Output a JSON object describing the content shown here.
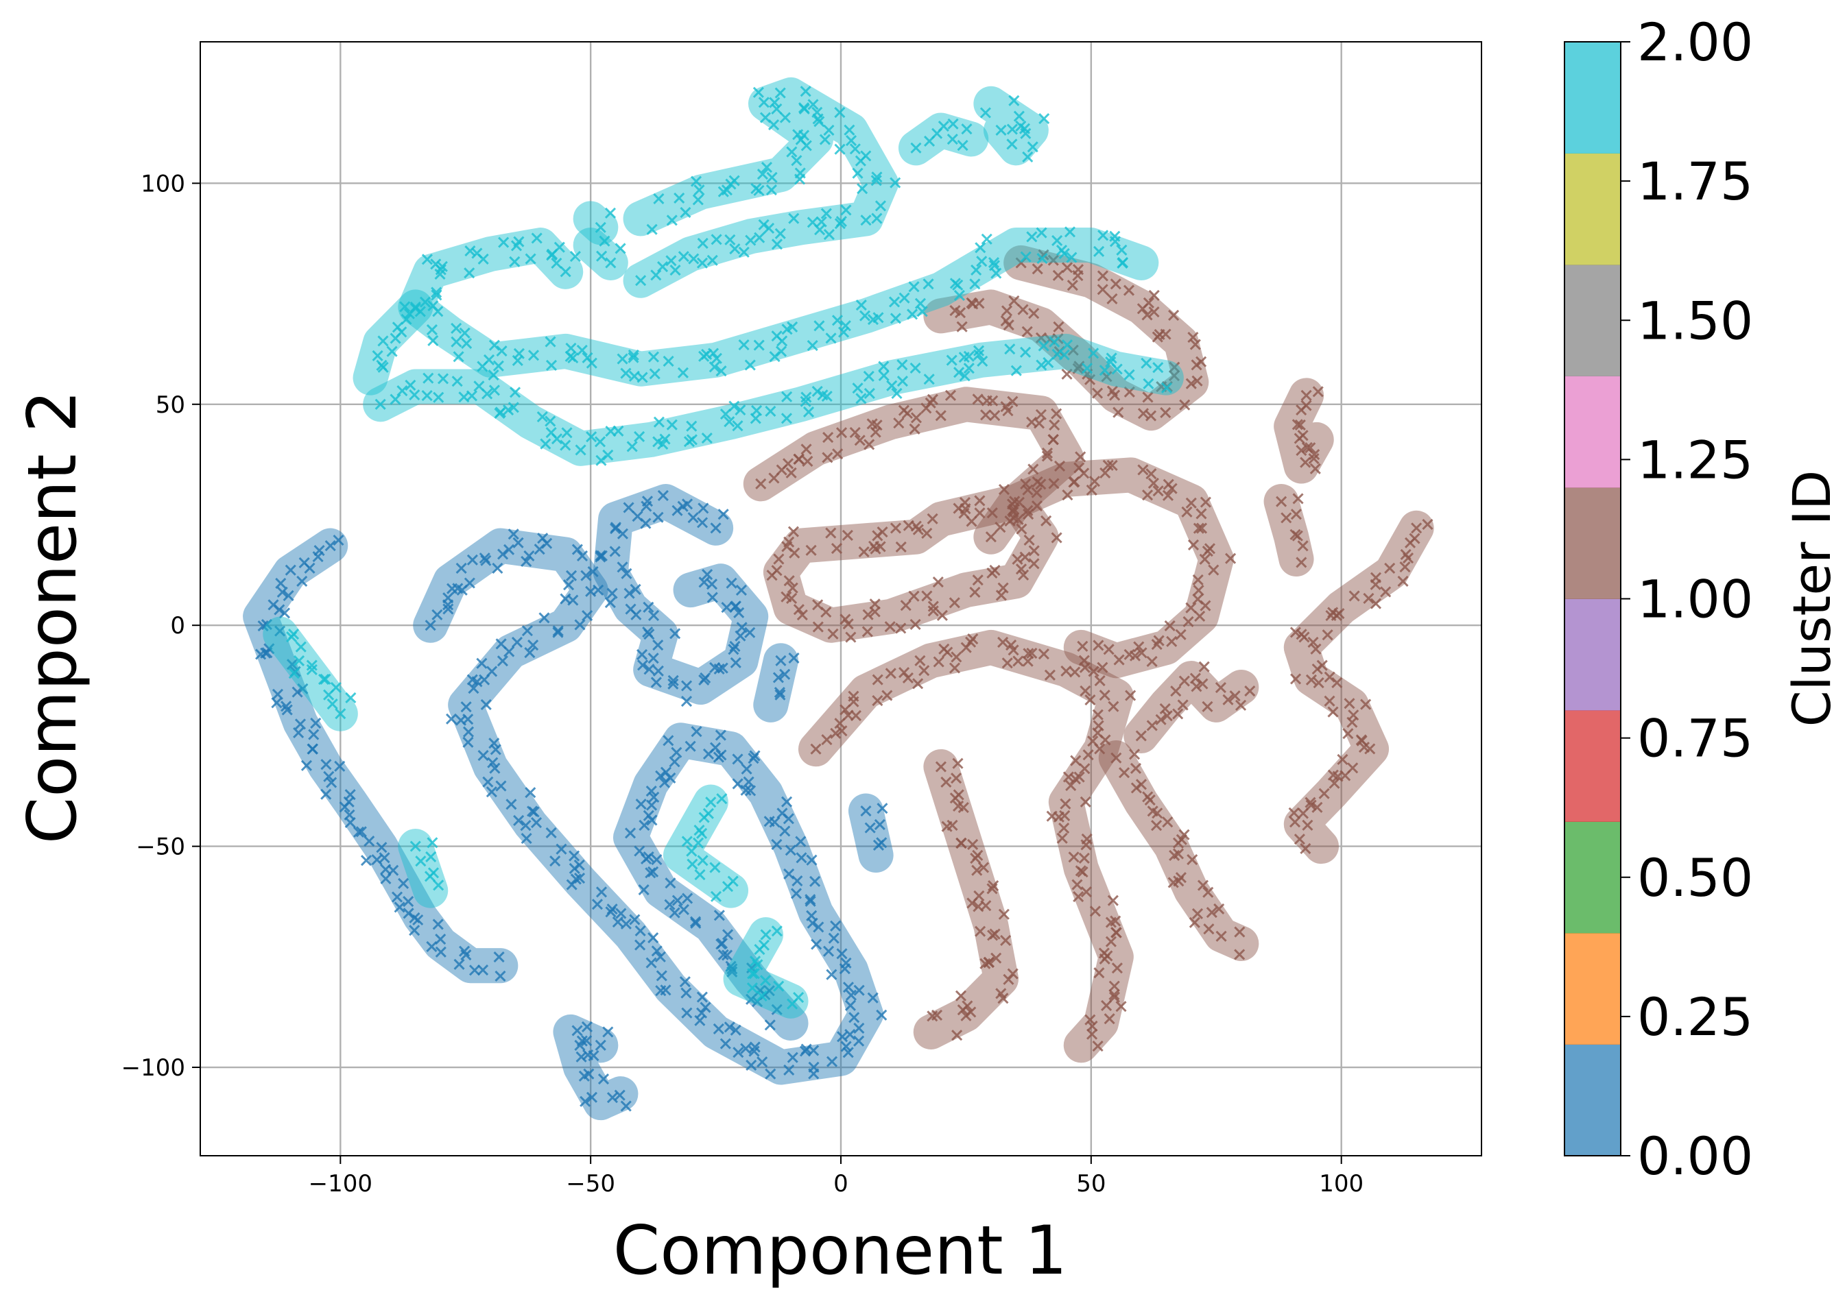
{
  "chart_data": {
    "type": "scatter",
    "title": "",
    "xlabel": "Component 1",
    "ylabel": "Component 2",
    "xlim": [
      -128,
      128
    ],
    "ylim": [
      -120,
      132
    ],
    "xticks": [
      -100,
      -50,
      0,
      50,
      100
    ],
    "xtick_labels": [
      "−100",
      "−50",
      "0",
      "50",
      "100"
    ],
    "yticks": [
      -100,
      -50,
      0,
      50,
      100
    ],
    "ytick_labels": [
      "−100",
      "−50",
      "0",
      "50",
      "100"
    ],
    "grid": true,
    "marker": "x",
    "colormap": "tab10",
    "colorbar": {
      "label": "Cluster ID",
      "range": [
        0,
        2
      ],
      "ticks": [
        0.0,
        0.25,
        0.5,
        0.75,
        1.0,
        1.25,
        1.5,
        1.75,
        2.0
      ],
      "tick_labels": [
        "0.00",
        "0.25",
        "0.50",
        "0.75",
        "1.00",
        "1.25",
        "1.50",
        "1.75",
        "2.00"
      ],
      "colors": [
        "#1f77b4",
        "#ff7f0e",
        "#2ca02c",
        "#d62728",
        "#9467bd",
        "#8c564b",
        "#e377c2",
        "#7f7f7f",
        "#bcbd22",
        "#17becf"
      ]
    },
    "series": [
      {
        "cluster": 0,
        "color": "#1f77b4",
        "paths": [
          [
            [
              -102,
              18
            ],
            [
              -110,
              12
            ],
            [
              -116,
              2
            ],
            [
              -112,
              -10
            ],
            [
              -108,
              -22
            ],
            [
              -103,
              -32
            ],
            [
              -98,
              -40
            ],
            [
              -92,
              -50
            ],
            [
              -88,
              -58
            ],
            [
              -84,
              -66
            ],
            [
              -80,
              -72
            ],
            [
              -74,
              -77
            ],
            [
              -68,
              -77
            ]
          ],
          [
            [
              -82,
              0
            ],
            [
              -78,
              10
            ],
            [
              -68,
              18
            ],
            [
              -55,
              16
            ],
            [
              -50,
              8
            ],
            [
              -55,
              0
            ],
            [
              -66,
              -6
            ],
            [
              -75,
              -18
            ],
            [
              -70,
              -32
            ],
            [
              -62,
              -45
            ],
            [
              -52,
              -58
            ],
            [
              -42,
              -70
            ],
            [
              -34,
              -82
            ],
            [
              -25,
              -92
            ],
            [
              -12,
              -100
            ],
            [
              0,
              -98
            ],
            [
              5,
              -88
            ],
            [
              2,
              -78
            ],
            [
              -5,
              -65
            ],
            [
              -10,
              -50
            ],
            [
              -15,
              -38
            ],
            [
              -22,
              -28
            ],
            [
              -32,
              -26
            ],
            [
              -38,
              -36
            ],
            [
              -42,
              -48
            ],
            [
              -36,
              -60
            ],
            [
              -26,
              -68
            ],
            [
              -18,
              -80
            ],
            [
              -10,
              -90
            ]
          ],
          [
            [
              -48,
              -95
            ],
            [
              -54,
              -92
            ],
            [
              -52,
              -100
            ],
            [
              -48,
              -108
            ],
            [
              -44,
              -106
            ]
          ],
          [
            [
              -25,
              22
            ],
            [
              -35,
              28
            ],
            [
              -45,
              24
            ],
            [
              -46,
              12
            ],
            [
              -42,
              4
            ],
            [
              -36,
              -2
            ],
            [
              -38,
              -10
            ],
            [
              -28,
              -14
            ],
            [
              -20,
              -8
            ],
            [
              -18,
              2
            ],
            [
              -24,
              10
            ],
            [
              -30,
              8
            ]
          ],
          [
            [
              5,
              -42
            ],
            [
              7,
              -52
            ]
          ],
          [
            [
              -12,
              -8
            ],
            [
              -14,
              -18
            ]
          ]
        ]
      },
      {
        "cluster": 1,
        "color": "#8c564b",
        "paths": [
          [
            [
              -16,
              32
            ],
            [
              -5,
              40
            ],
            [
              10,
              46
            ],
            [
              25,
              50
            ],
            [
              40,
              48
            ],
            [
              45,
              38
            ],
            [
              35,
              28
            ],
            [
              20,
              24
            ],
            [
              15,
              20
            ],
            [
              -8,
              18
            ],
            [
              -12,
              12
            ],
            [
              -10,
              4
            ],
            [
              -2,
              0
            ],
            [
              10,
              2
            ],
            [
              25,
              8
            ],
            [
              35,
              10
            ],
            [
              40,
              20
            ],
            [
              35,
              28
            ]
          ],
          [
            [
              30,
              20
            ],
            [
              35,
              28
            ],
            [
              45,
              33
            ],
            [
              58,
              34
            ],
            [
              70,
              28
            ],
            [
              75,
              15
            ],
            [
              72,
              2
            ],
            [
              65,
              -5
            ],
            [
              55,
              -8
            ],
            [
              48,
              -5
            ]
          ],
          [
            [
              -5,
              -28
            ],
            [
              5,
              -15
            ],
            [
              18,
              -8
            ],
            [
              30,
              -5
            ],
            [
              45,
              -10
            ],
            [
              55,
              -16
            ],
            [
              52,
              -28
            ],
            [
              45,
              -40
            ],
            [
              48,
              -55
            ],
            [
              55,
              -75
            ],
            [
              52,
              -90
            ],
            [
              48,
              -95
            ]
          ],
          [
            [
              20,
              -32
            ],
            [
              25,
              -50
            ],
            [
              30,
              -68
            ],
            [
              32,
              -80
            ],
            [
              25,
              -88
            ],
            [
              18,
              -92
            ]
          ],
          [
            [
              55,
              -30
            ],
            [
              60,
              -40
            ],
            [
              66,
              -50
            ],
            [
              70,
              -60
            ],
            [
              76,
              -70
            ],
            [
              80,
              -72
            ]
          ],
          [
            [
              60,
              -25
            ],
            [
              65,
              -18
            ],
            [
              70,
              -12
            ],
            [
              75,
              -18
            ],
            [
              80,
              -14
            ]
          ],
          [
            [
              36,
              82
            ],
            [
              50,
              78
            ],
            [
              60,
              72
            ],
            [
              68,
              64
            ],
            [
              70,
              55
            ],
            [
              62,
              48
            ],
            [
              55,
              52
            ],
            [
              48,
              60
            ],
            [
              40,
              68
            ],
            [
              30,
              72
            ],
            [
              20,
              70
            ]
          ],
          [
            [
              93,
              52
            ],
            [
              90,
              45
            ],
            [
              92,
              36
            ],
            [
              95,
              42
            ]
          ],
          [
            [
              88,
              28
            ],
            [
              90,
              20
            ],
            [
              91,
              15
            ]
          ],
          [
            [
              115,
              22
            ],
            [
              110,
              12
            ],
            [
              100,
              4
            ],
            [
              92,
              -5
            ],
            [
              94,
              -12
            ],
            [
              102,
              -18
            ],
            [
              106,
              -28
            ],
            [
              98,
              -38
            ],
            [
              92,
              -45
            ],
            [
              96,
              -50
            ]
          ]
        ]
      },
      {
        "cluster": 2,
        "color": "#17becf",
        "paths": [
          [
            [
              -40,
              78
            ],
            [
              -30,
              84
            ],
            [
              -18,
              88
            ],
            [
              -8,
              90
            ],
            [
              5,
              92
            ],
            [
              8,
              100
            ],
            [
              2,
              112
            ],
            [
              -10,
              120
            ],
            [
              -15,
              118
            ],
            [
              -5,
              110
            ],
            [
              -12,
              102
            ],
            [
              -28,
              98
            ],
            [
              -40,
              92
            ]
          ],
          [
            [
              -55,
              80
            ],
            [
              -60,
              86
            ],
            [
              -70,
              84
            ],
            [
              -82,
              80
            ],
            [
              -85,
              72
            ],
            [
              -78,
              66
            ],
            [
              -70,
              60
            ],
            [
              -55,
              62
            ],
            [
              -40,
              58
            ],
            [
              -25,
              60
            ],
            [
              -10,
              65
            ],
            [
              5,
              70
            ],
            [
              20,
              76
            ],
            [
              35,
              86
            ],
            [
              50,
              86
            ],
            [
              60,
              82
            ]
          ],
          [
            [
              -92,
              50
            ],
            [
              -85,
              54
            ],
            [
              -72,
              54
            ],
            [
              -62,
              46
            ],
            [
              -52,
              40
            ],
            [
              -38,
              42
            ],
            [
              -22,
              46
            ],
            [
              -8,
              50
            ],
            [
              10,
              56
            ],
            [
              28,
              60
            ],
            [
              45,
              62
            ],
            [
              55,
              58
            ],
            [
              65,
              56
            ]
          ],
          [
            [
              -46,
              82
            ],
            [
              -50,
              86
            ]
          ],
          [
            [
              -85,
              72
            ],
            [
              -92,
              64
            ],
            [
              -94,
              56
            ]
          ],
          [
            [
              15,
              108
            ],
            [
              20,
              112
            ],
            [
              26,
              110
            ]
          ],
          [
            [
              32,
              112
            ],
            [
              35,
              108
            ],
            [
              38,
              112
            ],
            [
              30,
              118
            ]
          ],
          [
            [
              -48,
              90
            ],
            [
              -50,
              92
            ]
          ],
          [
            [
              -100,
              -20
            ],
            [
              -108,
              -8
            ],
            [
              -112,
              -2
            ]
          ],
          [
            [
              -85,
              -50
            ],
            [
              -82,
              -60
            ]
          ],
          [
            [
              -26,
              -40
            ],
            [
              -32,
              -52
            ],
            [
              -22,
              -60
            ]
          ],
          [
            [
              -15,
              -70
            ],
            [
              -20,
              -80
            ],
            [
              -10,
              -85
            ]
          ]
        ]
      }
    ]
  }
}
